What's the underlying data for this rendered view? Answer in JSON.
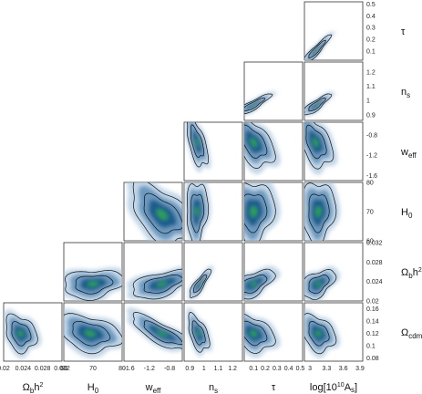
{
  "chart_data": {
    "type": "corner-contour",
    "description_free": true,
    "parameters": [
      {
        "key": "ombh2",
        "label_main": "Ω",
        "label_sub": "b",
        "label_rest": "h",
        "label_sup": "2",
        "ticks": [
          "0.02",
          "0.024",
          "0.028",
          "0.032"
        ],
        "range": [
          0.02,
          0.032
        ]
      },
      {
        "key": "H0",
        "label_main": "H",
        "label_sub": "0",
        "label_rest": "",
        "label_sup": "",
        "ticks": [
          "60",
          "70",
          "80"
        ],
        "range": [
          60,
          80
        ]
      },
      {
        "key": "weff",
        "label_main": "w",
        "label_sub": "eff",
        "label_rest": "",
        "label_sup": "",
        "ticks": [
          "-1.6",
          "-1.2",
          "-0.8"
        ],
        "range": [
          -1.7,
          -0.55
        ]
      },
      {
        "key": "ns",
        "label_main": "n",
        "label_sub": "s",
        "label_rest": "",
        "label_sup": "",
        "ticks": [
          "0.9",
          "1",
          "1.1",
          "1.2"
        ],
        "range": [
          0.86,
          1.27
        ]
      },
      {
        "key": "tau",
        "label_main": "τ",
        "label_sub": "",
        "label_rest": "",
        "label_sup": "",
        "ticks": [
          "0.1",
          "0.2",
          "0.3",
          "0.4",
          "0.5"
        ],
        "range": [
          0.02,
          0.52
        ]
      },
      {
        "key": "logAs",
        "label_main": "log[10",
        "label_sub": "",
        "label_rest": "A",
        "label_sup": "10",
        "label_after_sub": "s",
        "label_close": "]",
        "ticks": [
          "3",
          "3.3",
          "3.6",
          "3.9"
        ],
        "range": [
          2.9,
          3.95
        ]
      },
      {
        "key": "omch2",
        "label_main": "Ω",
        "label_sub": "cdm",
        "label_rest": "h",
        "label_sup": "2",
        "ticks": [
          "0.08",
          "0.1",
          "0.12",
          "0.14",
          "0.16"
        ],
        "range": [
          0.075,
          0.17
        ]
      }
    ],
    "y_ticks": {
      "tau": [
        "0.1",
        "0.2",
        "0.3",
        "0.4",
        "0.5"
      ],
      "ns": [
        "0.9",
        "1",
        "1.1",
        "1.2"
      ],
      "weff": [
        "-1.6",
        "-1.2",
        "-0.8"
      ],
      "H0": [
        "60",
        "70",
        "80"
      ],
      "ombh2": [
        "0.02",
        "0.024",
        "0.028",
        "0.032"
      ],
      "omch2": [
        "0.08",
        "0.1",
        "0.12",
        "0.14",
        "0.16"
      ]
    },
    "panels": [
      {
        "row": "tau",
        "col": "logAs",
        "center": [
          3.12,
          0.11
        ],
        "spread": [
          0.1,
          0.05
        ],
        "corr": 0.93
      },
      {
        "row": "ns",
        "col": "tau",
        "center": [
          0.1,
          0.97
        ],
        "spread": [
          0.06,
          0.03
        ],
        "corr": 0.88
      },
      {
        "row": "ns",
        "col": "logAs",
        "center": [
          3.12,
          0.97
        ],
        "spread": [
          0.1,
          0.03
        ],
        "corr": 0.85
      },
      {
        "row": "weff",
        "col": "ns",
        "center": [
          0.95,
          -0.95
        ],
        "spread": [
          0.03,
          0.2
        ],
        "corr": -0.6
      },
      {
        "row": "weff",
        "col": "tau",
        "center": [
          0.1,
          -0.95
        ],
        "spread": [
          0.07,
          0.2
        ],
        "corr": -0.5
      },
      {
        "row": "weff",
        "col": "logAs",
        "center": [
          3.1,
          -0.95
        ],
        "spread": [
          0.12,
          0.2
        ],
        "corr": -0.45
      },
      {
        "row": "H0",
        "col": "weff",
        "center": [
          -0.95,
          69
        ],
        "spread": [
          0.25,
          4.2
        ],
        "corr": -0.5
      },
      {
        "row": "H0",
        "col": "ns",
        "center": [
          0.95,
          70
        ],
        "spread": [
          0.03,
          4.2
        ],
        "corr": 0.1
      },
      {
        "row": "H0",
        "col": "tau",
        "center": [
          0.1,
          70
        ],
        "spread": [
          0.07,
          4.2
        ],
        "corr": 0.05
      },
      {
        "row": "H0",
        "col": "logAs",
        "center": [
          3.15,
          70
        ],
        "spread": [
          0.12,
          4.2
        ],
        "corr": 0.05
      },
      {
        "row": "ombh2",
        "col": "H0",
        "center": [
          70,
          0.0235
        ],
        "spread": [
          4.2,
          0.0012
        ],
        "corr": 0.2
      },
      {
        "row": "ombh2",
        "col": "weff",
        "center": [
          -0.95,
          0.0235
        ],
        "spread": [
          0.25,
          0.0012
        ],
        "corr": 0.55
      },
      {
        "row": "ombh2",
        "col": "ns",
        "center": [
          0.97,
          0.0235
        ],
        "spread": [
          0.03,
          0.0012
        ],
        "corr": 0.85
      },
      {
        "row": "ombh2",
        "col": "tau",
        "center": [
          0.1,
          0.0235
        ],
        "spread": [
          0.07,
          0.0012
        ],
        "corr": 0.55
      },
      {
        "row": "ombh2",
        "col": "logAs",
        "center": [
          3.15,
          0.0235
        ],
        "spread": [
          0.12,
          0.0012
        ],
        "corr": 0.45
      },
      {
        "row": "omch2",
        "col": "ombh2",
        "center": [
          0.0235,
          0.12
        ],
        "spread": [
          0.0013,
          0.012
        ],
        "corr": -0.25
      },
      {
        "row": "omch2",
        "col": "H0",
        "center": [
          69,
          0.12
        ],
        "spread": [
          4.2,
          0.012
        ],
        "corr": -0.3
      },
      {
        "row": "omch2",
        "col": "weff",
        "center": [
          -0.95,
          0.12
        ],
        "spread": [
          0.25,
          0.012
        ],
        "corr": -0.8
      },
      {
        "row": "omch2",
        "col": "ns",
        "center": [
          0.96,
          0.12
        ],
        "spread": [
          0.03,
          0.012
        ],
        "corr": -0.5
      },
      {
        "row": "omch2",
        "col": "tau",
        "center": [
          0.1,
          0.12
        ],
        "spread": [
          0.07,
          0.012
        ],
        "corr": -0.35
      },
      {
        "row": "omch2",
        "col": "logAs",
        "center": [
          3.15,
          0.12
        ],
        "spread": [
          0.12,
          0.012
        ],
        "corr": -0.3
      }
    ],
    "colors": {
      "outer": "#a9c6de",
      "mid": "#5a8db8",
      "inner": "#1f5d8c",
      "core": "#2e9d57",
      "line": "#111111"
    }
  }
}
